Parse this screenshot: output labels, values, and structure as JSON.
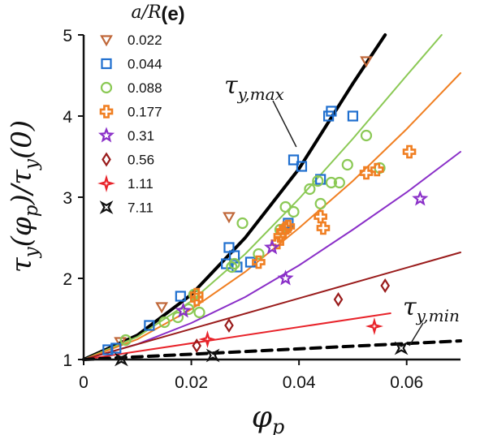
{
  "chart_data": {
    "type": "scatter",
    "panel_label": "(e)",
    "xlabel": "φp",
    "ylabel": "τy(φp)/τy(0)",
    "legend_title": "a/R",
    "legend_position": "top-left",
    "xlim": [
      0,
      0.07
    ],
    "ylim": [
      1,
      5
    ],
    "xticks": [
      "0",
      "0.02",
      "0.04",
      "0.06"
    ],
    "yticks": [
      "1",
      "2",
      "3",
      "4",
      "5"
    ],
    "xtick_values": [
      0,
      0.02,
      0.04,
      0.06
    ],
    "ytick_values": [
      1,
      2,
      3,
      4,
      5
    ],
    "grid": false,
    "series": [
      {
        "name": "0.022",
        "marker": "triangle-down",
        "color": "#c0683a",
        "x": [
          0.0068,
          0.0145,
          0.027,
          0.0525
        ],
        "y": [
          1.22,
          1.65,
          2.76,
          4.68
        ]
      },
      {
        "name": "0.044",
        "marker": "square",
        "color": "#1f6fcf",
        "x": [
          0.0045,
          0.006,
          0.0122,
          0.018,
          0.0265,
          0.027,
          0.028,
          0.0285,
          0.031,
          0.038,
          0.039,
          0.0405,
          0.044,
          0.0455,
          0.046,
          0.05
        ],
        "y": [
          1.12,
          1.14,
          1.42,
          1.78,
          2.18,
          2.38,
          2.28,
          2.14,
          2.2,
          2.68,
          3.46,
          3.38,
          3.22,
          4.0,
          4.06,
          4.0
        ]
      },
      {
        "name": "0.088",
        "marker": "circle",
        "color": "#8bc955",
        "x": [
          0.0078,
          0.015,
          0.0175,
          0.0195,
          0.0205,
          0.0215,
          0.0275,
          0.028,
          0.0295,
          0.0325,
          0.0365,
          0.0375,
          0.039,
          0.042,
          0.0435,
          0.044,
          0.046,
          0.0475,
          0.049,
          0.0525,
          0.055
        ],
        "y": [
          1.24,
          1.46,
          1.52,
          1.62,
          1.8,
          1.58,
          2.14,
          2.18,
          2.68,
          2.3,
          2.6,
          2.88,
          2.82,
          3.1,
          3.2,
          2.92,
          3.18,
          3.18,
          3.4,
          3.76,
          3.36
        ]
      },
      {
        "name": "0.177",
        "marker": "plus",
        "color": "#f07f22",
        "x": [
          0.021,
          0.021,
          0.0325,
          0.036,
          0.0365,
          0.037,
          0.0375,
          0.038,
          0.044,
          0.0445,
          0.0525,
          0.0545,
          0.0605
        ],
        "y": [
          1.8,
          1.74,
          2.2,
          2.44,
          2.52,
          2.58,
          2.62,
          2.64,
          2.76,
          2.62,
          3.3,
          3.34,
          3.56
        ]
      },
      {
        "name": "0.31",
        "marker": "star",
        "color": "#8a2fc8",
        "x": [
          0.0185,
          0.035,
          0.0375,
          0.0625
        ],
        "y": [
          1.6,
          2.38,
          2.0,
          2.98
        ]
      },
      {
        "name": "0.56",
        "marker": "diamond",
        "color": "#9a1c1c",
        "x": [
          0.021,
          0.027,
          0.0473,
          0.056
        ],
        "y": [
          1.17,
          1.42,
          1.74,
          1.91
        ]
      },
      {
        "name": "1.11",
        "marker": "sparkle",
        "color": "#e8232a",
        "x": [
          0.023,
          0.054
        ],
        "y": [
          1.25,
          1.41
        ]
      },
      {
        "name": "7.11",
        "marker": "x-star",
        "color": "#111111",
        "x": [
          0.007,
          0.024,
          0.059
        ],
        "y": [
          1.0,
          1.05,
          1.14
        ]
      }
    ],
    "fit_lines": [
      {
        "color": "#000000",
        "width": 4,
        "dash": false,
        "x": [
          0,
          0.01,
          0.02,
          0.03,
          0.04,
          0.05,
          0.056
        ],
        "y": [
          1,
          1.3,
          1.8,
          2.5,
          3.35,
          4.4,
          5.0
        ]
      },
      {
        "color": "#8bc955",
        "width": 2,
        "dash": false,
        "x": [
          0,
          0.01,
          0.02,
          0.03,
          0.04,
          0.05,
          0.06,
          0.0665
        ],
        "y": [
          1,
          1.28,
          1.72,
          2.3,
          2.98,
          3.72,
          4.5,
          5.0
        ]
      },
      {
        "color": "#f07f22",
        "width": 2,
        "dash": false,
        "x": [
          0,
          0.01,
          0.02,
          0.03,
          0.04,
          0.05,
          0.06,
          0.07
        ],
        "y": [
          1,
          1.25,
          1.62,
          2.08,
          2.62,
          3.2,
          3.84,
          4.53
        ]
      },
      {
        "color": "#8a2fc8",
        "width": 2,
        "dash": false,
        "x": [
          0,
          0.01,
          0.02,
          0.03,
          0.04,
          0.05,
          0.06,
          0.07
        ],
        "y": [
          1,
          1.19,
          1.45,
          1.77,
          2.16,
          2.6,
          3.06,
          3.56
        ]
      },
      {
        "color": "#9a1c1c",
        "width": 2,
        "dash": false,
        "x": [
          0,
          0.07
        ],
        "y": [
          1,
          2.32
        ]
      },
      {
        "color": "#e8232a",
        "width": 2,
        "dash": false,
        "x": [
          0,
          0.057
        ],
        "y": [
          1,
          1.57
        ]
      },
      {
        "color": "#000000",
        "width": 4,
        "dash": true,
        "x": [
          0,
          0.07
        ],
        "y": [
          1,
          1.23
        ]
      }
    ],
    "annotations": [
      {
        "text": "τy,max",
        "main": "τ",
        "sub": "y,max",
        "point_x": 0.0395,
        "point_y": 3.62
      },
      {
        "text": "τy,min",
        "main": "τ",
        "sub": "y,min",
        "point_x": 0.0605,
        "point_y": 1.17
      }
    ]
  }
}
